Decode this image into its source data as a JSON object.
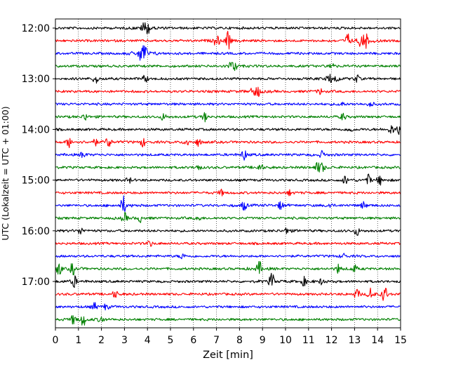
{
  "chart_data": {
    "type": "line",
    "title": "",
    "xlabel": "Zeit  [min]",
    "ylabel": "UTC (Lokalzeit = UTC + 01:00)",
    "xlim": [
      0,
      15
    ],
    "x_ticks": [
      "0",
      "1",
      "2",
      "3",
      "4",
      "5",
      "6",
      "7",
      "8",
      "9",
      "10",
      "11",
      "12",
      "13",
      "14",
      "15"
    ],
    "y_ticks": [
      "12:00",
      "13:00",
      "14:00",
      "15:00",
      "16:00",
      "17:00"
    ],
    "grid": "vertical dotted at each minute",
    "legend": "none",
    "trace_interval_min": 15,
    "color_cycle": [
      "#000000",
      "#ff0000",
      "#0000ff",
      "#008000"
    ],
    "traces": [
      {
        "start": "12:00",
        "color": "#000000",
        "events": [
          [
            3.85,
            9
          ],
          [
            4.05,
            7
          ]
        ]
      },
      {
        "start": "12:15",
        "color": "#ff0000",
        "events": [
          [
            7.0,
            8
          ],
          [
            7.5,
            13
          ],
          [
            12.7,
            9
          ],
          [
            13.3,
            10
          ],
          [
            13.5,
            9
          ]
        ]
      },
      {
        "start": "12:30",
        "color": "#0000ff",
        "events": [
          [
            3.7,
            8
          ],
          [
            3.9,
            10
          ],
          [
            3.75,
            7
          ]
        ]
      },
      {
        "start": "12:45",
        "color": "#008000",
        "events": [
          [
            7.6,
            5
          ],
          [
            7.8,
            6
          ],
          [
            12.0,
            5
          ]
        ]
      },
      {
        "start": "13:00",
        "color": "#000000",
        "events": [
          [
            1.75,
            7
          ],
          [
            3.9,
            5
          ],
          [
            11.9,
            7
          ],
          [
            12.2,
            5
          ],
          [
            13.1,
            5
          ]
        ]
      },
      {
        "start": "13:15",
        "color": "#ff0000",
        "events": [
          [
            8.6,
            6
          ],
          [
            8.8,
            7
          ],
          [
            11.5,
            4
          ]
        ]
      },
      {
        "start": "13:30",
        "color": "#0000ff",
        "events": [
          [
            12.4,
            4
          ],
          [
            13.7,
            4
          ]
        ]
      },
      {
        "start": "13:45",
        "color": "#008000",
        "events": [
          [
            1.3,
            5
          ],
          [
            4.7,
            5
          ],
          [
            6.5,
            6
          ],
          [
            12.5,
            5
          ]
        ]
      },
      {
        "start": "14:00",
        "color": "#000000",
        "events": [
          [
            12.8,
            4
          ],
          [
            14.6,
            6
          ],
          [
            14.9,
            7
          ]
        ]
      },
      {
        "start": "14:15",
        "color": "#ff0000",
        "events": [
          [
            0.6,
            7
          ],
          [
            1.7,
            5
          ],
          [
            2.3,
            8
          ],
          [
            3.8,
            6
          ],
          [
            5.7,
            5
          ],
          [
            6.2,
            5
          ]
        ]
      },
      {
        "start": "14:30",
        "color": "#0000ff",
        "events": [
          [
            1.2,
            5
          ],
          [
            8.2,
            7
          ],
          [
            11.6,
            5
          ]
        ]
      },
      {
        "start": "14:45",
        "color": "#008000",
        "events": [
          [
            6.2,
            4
          ],
          [
            8.9,
            6
          ],
          [
            11.4,
            7
          ],
          [
            11.6,
            6
          ]
        ]
      },
      {
        "start": "15:00",
        "color": "#000000",
        "events": [
          [
            3.2,
            4
          ],
          [
            12.6,
            6
          ],
          [
            13.6,
            7
          ],
          [
            14.1,
            6
          ]
        ]
      },
      {
        "start": "15:15",
        "color": "#ff0000",
        "events": [
          [
            7.2,
            4
          ],
          [
            10.2,
            4
          ]
        ]
      },
      {
        "start": "15:30",
        "color": "#0000ff",
        "events": [
          [
            2.95,
            13
          ],
          [
            8.2,
            7
          ],
          [
            9.8,
            6
          ],
          [
            11.9,
            4
          ],
          [
            13.4,
            5
          ]
        ]
      },
      {
        "start": "15:45",
        "color": "#008000",
        "events": [
          [
            3.0,
            7
          ],
          [
            3.7,
            5
          ],
          [
            6.2,
            4
          ]
        ]
      },
      {
        "start": "16:00",
        "color": "#000000",
        "events": [
          [
            1.1,
            5
          ],
          [
            10.1,
            6
          ],
          [
            13.1,
            6
          ]
        ]
      },
      {
        "start": "16:15",
        "color": "#ff0000",
        "events": [
          [
            4.1,
            4
          ]
        ]
      },
      {
        "start": "16:30",
        "color": "#0000ff",
        "events": [
          [
            5.5,
            4
          ],
          [
            12.5,
            4
          ]
        ]
      },
      {
        "start": "16:45",
        "color": "#008000",
        "events": [
          [
            0.15,
            9
          ],
          [
            0.75,
            8
          ],
          [
            8.85,
            10
          ],
          [
            12.3,
            6
          ],
          [
            13.0,
            5
          ]
        ]
      },
      {
        "start": "17:00",
        "color": "#000000",
        "events": [
          [
            0.8,
            9
          ],
          [
            9.4,
            12
          ],
          [
            10.8,
            6
          ],
          [
            11.6,
            5
          ]
        ]
      },
      {
        "start": "17:15",
        "color": "#ff0000",
        "events": [
          [
            2.6,
            5
          ],
          [
            13.1,
            7
          ],
          [
            13.7,
            8
          ],
          [
            14.3,
            12
          ]
        ]
      },
      {
        "start": "17:30",
        "color": "#0000ff",
        "events": [
          [
            1.7,
            5
          ],
          [
            2.2,
            4
          ]
        ]
      },
      {
        "start": "17:45",
        "color": "#008000",
        "events": [
          [
            0.8,
            7
          ],
          [
            1.2,
            9
          ],
          [
            2.0,
            5
          ]
        ]
      }
    ]
  }
}
